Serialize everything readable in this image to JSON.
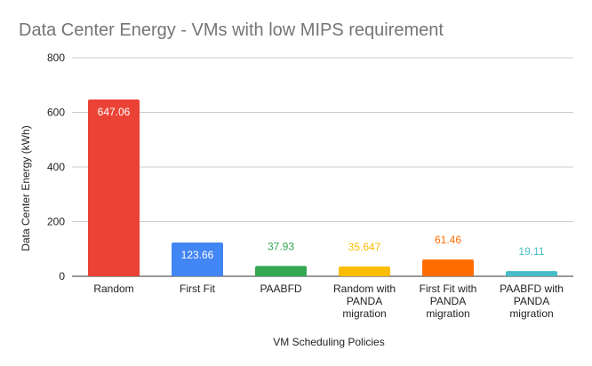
{
  "chart_data": {
    "type": "bar",
    "title": "Data Center Energy - VMs with low MIPS requirement",
    "xlabel": "VM Scheduling Policies",
    "ylabel": "Data Center Energy (kWh)",
    "ylim": [
      0,
      800
    ],
    "yticks": [
      "0",
      "200",
      "400",
      "600",
      "800"
    ],
    "grid": true,
    "legend": "none",
    "categories": [
      [
        "Random"
      ],
      [
        "First Fit"
      ],
      [
        "PAABFD"
      ],
      [
        "Random with",
        "PANDA",
        "migration"
      ],
      [
        "First Fit with",
        "PANDA",
        "migration"
      ],
      [
        "PAABFD with",
        "PANDA",
        "migration"
      ]
    ],
    "values": [
      647.06,
      123.66,
      37.93,
      35.647,
      61.46,
      19.11
    ],
    "data_labels": [
      "647.06",
      "123.66",
      "37.93",
      "35.647",
      "61.46",
      "19.11"
    ],
    "colors": [
      "#ea4335",
      "#4285f4",
      "#34a853",
      "#fbbc04",
      "#ff6d01",
      "#46bdc6"
    ]
  }
}
